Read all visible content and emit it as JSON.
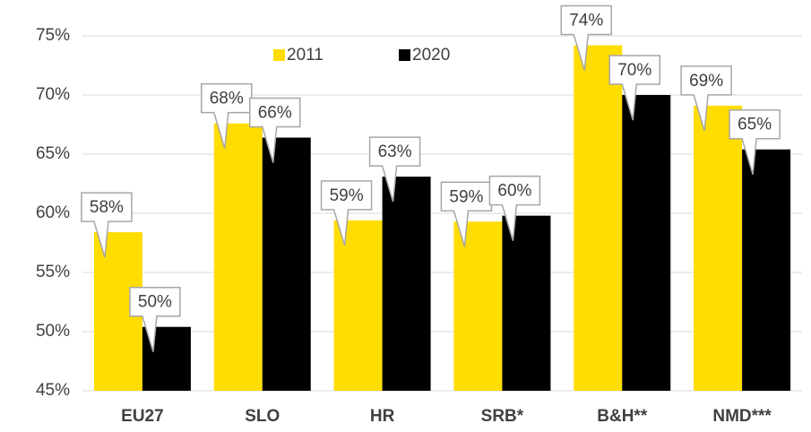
{
  "chart_data": {
    "type": "bar",
    "categories": [
      "EU27",
      "SLO",
      "HR",
      "SRB*",
      "B&H**",
      "NMD***"
    ],
    "series": [
      {
        "name": "2011",
        "color": "#ffdd00",
        "values": [
          58.4,
          67.6,
          59.4,
          59.3,
          74.2,
          69.1
        ],
        "value_labels": [
          "58%",
          "68%",
          "59%",
          "59%",
          "74%",
          "69%"
        ]
      },
      {
        "name": "2020",
        "color": "#000000",
        "values": [
          50.4,
          66.4,
          63.1,
          59.8,
          70.0,
          65.4
        ],
        "value_labels": [
          "50%",
          "66%",
          "63%",
          "60%",
          "70%",
          "65%"
        ]
      }
    ],
    "ylim": [
      45,
      75
    ],
    "yticks": [
      {
        "value": 45,
        "label": "45%"
      },
      {
        "value": 50,
        "label": "50%"
      },
      {
        "value": 55,
        "label": "55%"
      },
      {
        "value": 60,
        "label": "60%"
      },
      {
        "value": 65,
        "label": "65%"
      },
      {
        "value": 70,
        "label": "70%"
      },
      {
        "value": 75,
        "label": "75%"
      }
    ],
    "grid": true,
    "legend": "top"
  }
}
